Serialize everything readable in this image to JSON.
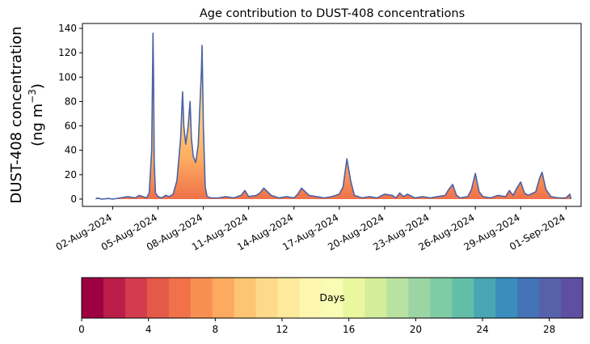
{
  "chart_data": {
    "type": "area",
    "title": "Age contribution to DUST-408 concentrations",
    "ylabel_line1": "DUST-408 concentration",
    "ylabel_line2": "(ng m",
    "ylabel_exponent": "−3",
    "ylabel_close": ")",
    "ylim": [
      -6,
      144
    ],
    "yticks": [
      0,
      20,
      40,
      60,
      80,
      100,
      120,
      140
    ],
    "xlim": [
      "2024-07-31T00:00",
      "2024-09-02T00:00"
    ],
    "xticks": [
      {
        "date": "2024-08-02",
        "label": "02-Aug-2024"
      },
      {
        "date": "2024-08-05",
        "label": "05-Aug-2024"
      },
      {
        "date": "2024-08-08",
        "label": "08-Aug-2024"
      },
      {
        "date": "2024-08-11",
        "label": "11-Aug-2024"
      },
      {
        "date": "2024-08-14",
        "label": "14-Aug-2024"
      },
      {
        "date": "2024-08-17",
        "label": "17-Aug-2024"
      },
      {
        "date": "2024-08-20",
        "label": "20-Aug-2024"
      },
      {
        "date": "2024-08-23",
        "label": "23-Aug-2024"
      },
      {
        "date": "2024-08-26",
        "label": "26-Aug-2024"
      },
      {
        "date": "2024-08-29",
        "label": "29-Aug-2024"
      },
      {
        "date": "2024-09-01",
        "label": "01-Sep-2024"
      }
    ],
    "series": [
      {
        "points": [
          [
            "2024-07-31T21:00",
            0
          ],
          [
            "2024-08-01T00:00",
            1
          ],
          [
            "2024-08-01T06:00",
            0
          ],
          [
            "2024-08-01T18:00",
            0.5
          ],
          [
            "2024-08-02T00:00",
            0
          ],
          [
            "2024-08-02T12:00",
            1
          ],
          [
            "2024-08-03T00:00",
            2
          ],
          [
            "2024-08-03T12:00",
            1
          ],
          [
            "2024-08-03T18:00",
            3
          ],
          [
            "2024-08-04T00:00",
            2
          ],
          [
            "2024-08-04T06:00",
            1
          ],
          [
            "2024-08-04T10:00",
            5
          ],
          [
            "2024-08-04T14:00",
            40
          ],
          [
            "2024-08-04T16:00",
            136
          ],
          [
            "2024-08-04T17:00",
            100
          ],
          [
            "2024-08-04T18:00",
            30
          ],
          [
            "2024-08-04T20:00",
            5
          ],
          [
            "2024-08-05T00:00",
            2
          ],
          [
            "2024-08-05T06:00",
            1
          ],
          [
            "2024-08-05T12:00",
            3
          ],
          [
            "2024-08-05T18:00",
            2
          ],
          [
            "2024-08-06T00:00",
            4
          ],
          [
            "2024-08-06T06:00",
            15
          ],
          [
            "2024-08-06T12:00",
            50
          ],
          [
            "2024-08-06T15:00",
            88
          ],
          [
            "2024-08-06T17:00",
            60
          ],
          [
            "2024-08-06T20:00",
            45
          ],
          [
            "2024-08-07T00:00",
            60
          ],
          [
            "2024-08-07T03:00",
            80
          ],
          [
            "2024-08-07T05:00",
            50
          ],
          [
            "2024-08-07T08:00",
            35
          ],
          [
            "2024-08-07T12:00",
            30
          ],
          [
            "2024-08-07T16:00",
            45
          ],
          [
            "2024-08-07T21:00",
            105
          ],
          [
            "2024-08-07T22:00",
            126
          ],
          [
            "2024-08-08T00:00",
            60
          ],
          [
            "2024-08-08T03:00",
            10
          ],
          [
            "2024-08-08T06:00",
            2
          ],
          [
            "2024-08-08T12:00",
            1
          ],
          [
            "2024-08-09T00:00",
            1
          ],
          [
            "2024-08-09T12:00",
            2
          ],
          [
            "2024-08-10T00:00",
            1
          ],
          [
            "2024-08-10T12:00",
            3
          ],
          [
            "2024-08-10T18:00",
            7
          ],
          [
            "2024-08-11T00:00",
            2
          ],
          [
            "2024-08-11T12:00",
            3
          ],
          [
            "2024-08-11T18:00",
            5
          ],
          [
            "2024-08-12T00:00",
            9
          ],
          [
            "2024-08-12T06:00",
            6
          ],
          [
            "2024-08-12T12:00",
            3
          ],
          [
            "2024-08-13T00:00",
            1
          ],
          [
            "2024-08-13T12:00",
            2
          ],
          [
            "2024-08-14T00:00",
            1
          ],
          [
            "2024-08-14T06:00",
            4
          ],
          [
            "2024-08-14T12:00",
            9
          ],
          [
            "2024-08-14T18:00",
            6
          ],
          [
            "2024-08-15T00:00",
            3
          ],
          [
            "2024-08-15T12:00",
            2
          ],
          [
            "2024-08-16T00:00",
            1
          ],
          [
            "2024-08-16T12:00",
            2
          ],
          [
            "2024-08-17T00:00",
            4
          ],
          [
            "2024-08-17T06:00",
            10
          ],
          [
            "2024-08-17T12:00",
            33
          ],
          [
            "2024-08-17T18:00",
            15
          ],
          [
            "2024-08-18T00:00",
            3
          ],
          [
            "2024-08-18T12:00",
            1
          ],
          [
            "2024-08-19T00:00",
            2
          ],
          [
            "2024-08-19T12:00",
            1
          ],
          [
            "2024-08-20T00:00",
            4
          ],
          [
            "2024-08-20T12:00",
            3
          ],
          [
            "2024-08-20T18:00",
            1
          ],
          [
            "2024-08-21T00:00",
            5
          ],
          [
            "2024-08-21T06:00",
            2
          ],
          [
            "2024-08-21T12:00",
            4
          ],
          [
            "2024-08-22T00:00",
            1
          ],
          [
            "2024-08-22T12:00",
            2
          ],
          [
            "2024-08-23T00:00",
            1
          ],
          [
            "2024-08-23T12:00",
            2
          ],
          [
            "2024-08-24T00:00",
            3
          ],
          [
            "2024-08-24T06:00",
            8
          ],
          [
            "2024-08-24T12:00",
            12
          ],
          [
            "2024-08-24T18:00",
            3
          ],
          [
            "2024-08-25T00:00",
            1
          ],
          [
            "2024-08-25T12:00",
            2
          ],
          [
            "2024-08-25T18:00",
            8
          ],
          [
            "2024-08-26T00:00",
            21
          ],
          [
            "2024-08-26T06:00",
            6
          ],
          [
            "2024-08-26T12:00",
            2
          ],
          [
            "2024-08-27T00:00",
            1
          ],
          [
            "2024-08-27T12:00",
            3
          ],
          [
            "2024-08-28T00:00",
            2
          ],
          [
            "2024-08-28T06:00",
            7
          ],
          [
            "2024-08-28T12:00",
            3
          ],
          [
            "2024-08-28T18:00",
            9
          ],
          [
            "2024-08-29T00:00",
            14
          ],
          [
            "2024-08-29T06:00",
            5
          ],
          [
            "2024-08-29T12:00",
            3
          ],
          [
            "2024-08-30T00:00",
            6
          ],
          [
            "2024-08-30T06:00",
            17
          ],
          [
            "2024-08-30T10:00",
            22
          ],
          [
            "2024-08-30T16:00",
            8
          ],
          [
            "2024-08-31T00:00",
            2
          ],
          [
            "2024-08-31T12:00",
            1
          ],
          [
            "2024-09-01T00:00",
            1
          ],
          [
            "2024-09-01T06:00",
            4
          ],
          [
            "2024-09-01T08:00",
            0
          ]
        ]
      }
    ],
    "outline_color": "#4b62a6",
    "colorbar": {
      "label": "Days",
      "min": 0,
      "max": 30,
      "ticks": [
        0,
        4,
        8,
        12,
        16,
        20,
        24,
        28
      ],
      "colors": [
        "#9e0142",
        "#bb1d4a",
        "#d33c4e",
        "#e35a48",
        "#f0714a",
        "#f88f52",
        "#fbaa5f",
        "#fdc473",
        "#fdd989",
        "#fee99d",
        "#fff6b0",
        "#f8fcb4",
        "#eaf79f",
        "#d4ed9b",
        "#b8e2a2",
        "#9bd5a4",
        "#7ecba4",
        "#62bea7",
        "#4aa6b2",
        "#3b8dbd",
        "#4373b4",
        "#5562aa",
        "#5e4fa2"
      ]
    },
    "grid": false,
    "legend": "none"
  }
}
